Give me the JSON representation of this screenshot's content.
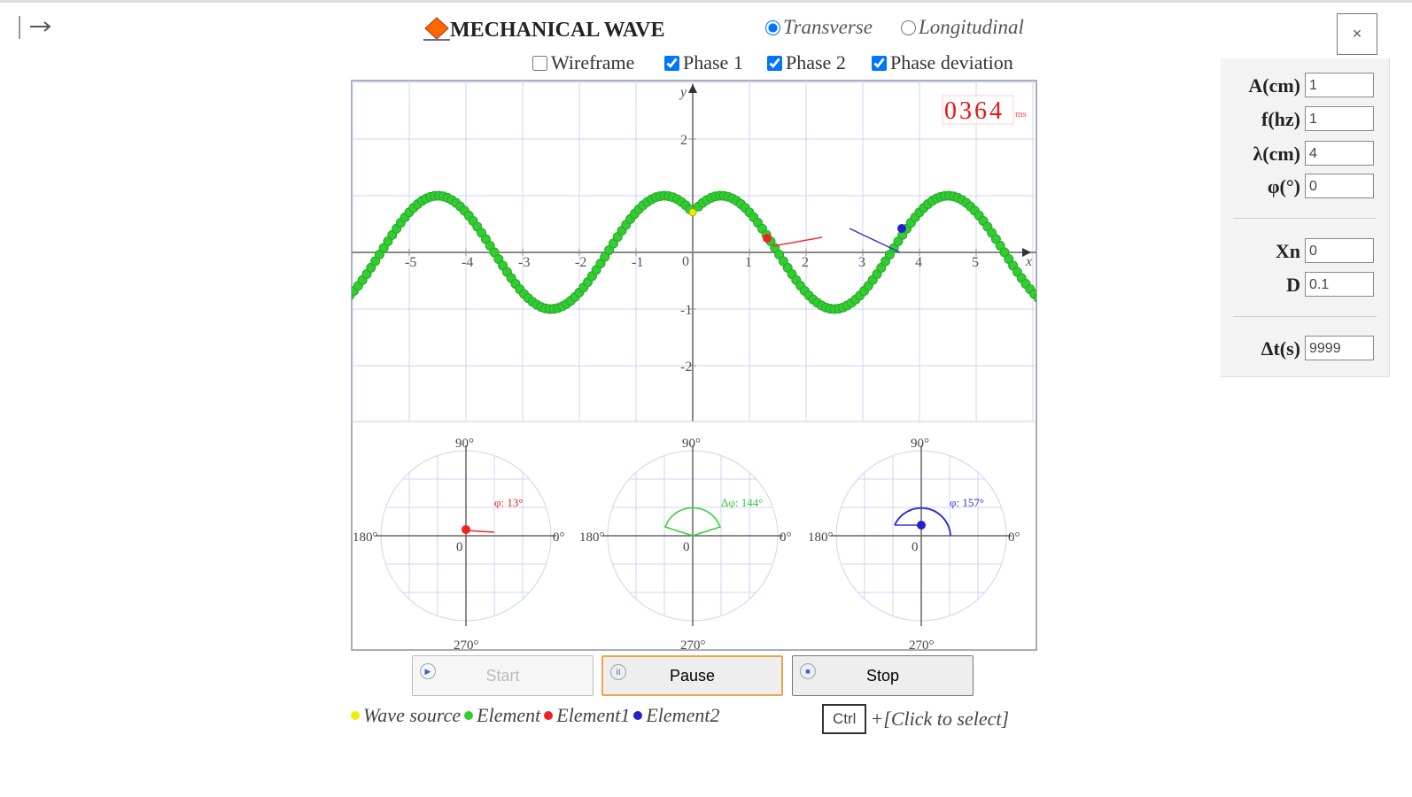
{
  "header": {
    "title": "MECHANICAL WAVE",
    "modes": [
      {
        "label": "Transverse",
        "selected": true
      },
      {
        "label": "Longitudinal",
        "selected": false
      }
    ]
  },
  "options": [
    {
      "label": "Wireframe",
      "checked": false
    },
    {
      "label": "Phase 1",
      "checked": true
    },
    {
      "label": "Phase 2",
      "checked": true
    },
    {
      "label": "Phase deviation",
      "checked": true
    }
  ],
  "plot": {
    "x_axis_label": "x",
    "y_axis_label": "y",
    "origin_label": "0",
    "x_ticks": [
      -5,
      -4,
      -3,
      -2,
      -1,
      1,
      2,
      3,
      4,
      5
    ],
    "y_ticks": [
      2,
      -1,
      -2
    ],
    "timer": "0364",
    "timer_unit": "ms"
  },
  "phase_circles": [
    {
      "top": "90°",
      "left": "180°",
      "right": "0°",
      "bottom": "270°",
      "origin": "0",
      "annotation": "φ: 13°"
    },
    {
      "top": "90°",
      "left": "180°",
      "right": "0°",
      "bottom": "270°",
      "origin": "0",
      "annotation": "Δφ: 144°"
    },
    {
      "top": "90°",
      "left": "180°",
      "right": "0°",
      "bottom": "270°",
      "origin": "0",
      "annotation": "φ: 157°"
    }
  ],
  "buttons": [
    "Start",
    "Pause",
    "Stop"
  ],
  "legend": [
    "Wave source",
    "Element",
    "Element1",
    "Element2"
  ],
  "hint": {
    "key": "Ctrl",
    "text": "+[Click to select]"
  },
  "panel": {
    "close": "×",
    "fields": [
      {
        "label": "A(cm)",
        "value": "1"
      },
      {
        "label": "f(hz)",
        "value": "1"
      },
      {
        "label": "λ(cm)",
        "value": "4"
      },
      {
        "label": "φ(°)",
        "value": "0"
      },
      {
        "label": "Xn",
        "value": "0"
      },
      {
        "label": "D",
        "value": "0.1"
      },
      {
        "label": "Δt(s)",
        "value": "9999"
      }
    ]
  }
}
